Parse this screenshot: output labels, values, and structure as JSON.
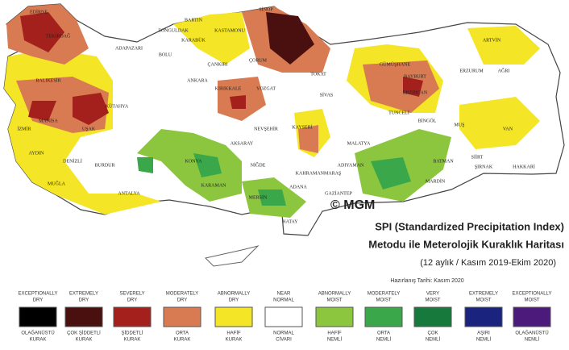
{
  "header": {
    "logo": "© MGM",
    "title_lines": [
      "SPI (Standardized Precipitation Index)",
      "Metodu ile Meterolojik Kuraklık Haritası",
      "(12 aylık / Kasım 2019-Ekim 2020)"
    ],
    "date": "Hazırlanış Tarihi: Kasım 2020"
  },
  "provinces": [
    "EDİRNE",
    "TEKİRDAĞ",
    "ZONGULDAK",
    "BARTIN",
    "KASTAMONU",
    "SİNOP",
    "KARABÜK",
    "ADAPAZARI",
    "BOLU",
    "ÇANKIRI",
    "ÇORUM",
    "TOKAT",
    "ARTVİN",
    "GÜMÜŞHANE",
    "BAYBURT",
    "ERZURUM",
    "AĞRI",
    "BALIKESİR",
    "ANKARA",
    "KIRIKKALE",
    "YOZGAT",
    "SİVAS",
    "ERZİNCAN",
    "KÜTAHYA",
    "MANİSA",
    "İZMİR",
    "TUNCELİ",
    "BİNGÖL",
    "MUŞ",
    "VAN",
    "UŞAK",
    "NEVŞEHİR",
    "KAYSERİ",
    "MALATYA",
    "AYDIN",
    "DENİZLİ",
    "BURDUR",
    "KONYA",
    "AKSARAY",
    "NİĞDE",
    "ADIYAMAN",
    "BATMAN",
    "SİİRT",
    "ŞIRNAK",
    "HAKKARİ",
    "MUĞLA",
    "ANTALYA",
    "KARAMAN",
    "KAHRAMANMARAŞ",
    "MARDİN",
    "ADANA",
    "GAZİANTEP",
    "MERSİN",
    "HATAY"
  ],
  "legend": {
    "items": [
      {
        "top": [
          "EXCEPTIONALLY",
          "DRY"
        ],
        "bottom": [
          "OLAĞANÜSTÜ",
          "KURAK"
        ],
        "color": "#000000"
      },
      {
        "top": [
          "EXTREMELY",
          "DRY"
        ],
        "bottom": [
          "ÇOK ŞİDDETLİ",
          "KURAK"
        ],
        "color": "#4a0f0f"
      },
      {
        "top": [
          "SEVERELY",
          "DRY"
        ],
        "bottom": [
          "ŞİDDETLİ",
          "KURAK"
        ],
        "color": "#a3201c"
      },
      {
        "top": [
          "MODERATELY",
          "DRY"
        ],
        "bottom": [
          "ORTA",
          "KURAK"
        ],
        "color": "#d97b52"
      },
      {
        "top": [
          "ABNORMALLY",
          "DRY"
        ],
        "bottom": [
          "HAFİF",
          "KURAK"
        ],
        "color": "#f4e526"
      },
      {
        "top": [
          "NEAR",
          "NORMAL"
        ],
        "bottom": [
          "NORMAL",
          "CİVARI"
        ],
        "color": "#ffffff"
      },
      {
        "top": [
          "ABNORMALLY",
          "MOIST"
        ],
        "bottom": [
          "HAFİF",
          "NEMLİ"
        ],
        "color": "#8cc63f"
      },
      {
        "top": [
          "MODERATELY",
          "MOIST"
        ],
        "bottom": [
          "ORTA",
          "NEMLİ"
        ],
        "color": "#3aa84a"
      },
      {
        "top": [
          "VERY",
          "MOIST"
        ],
        "bottom": [
          "ÇOK",
          "NEMLİ"
        ],
        "color": "#177a3c"
      },
      {
        "top": [
          "EXTREMELY",
          "MOIST"
        ],
        "bottom": [
          "AŞIRI",
          "NEMLİ"
        ],
        "color": "#1a237e"
      },
      {
        "top": [
          "EXCEPTIONALLY",
          "MOIST"
        ],
        "bottom": [
          "OLAĞANÜSTÜ",
          "NEMLİ"
        ],
        "color": "#4b1a7a"
      }
    ]
  }
}
